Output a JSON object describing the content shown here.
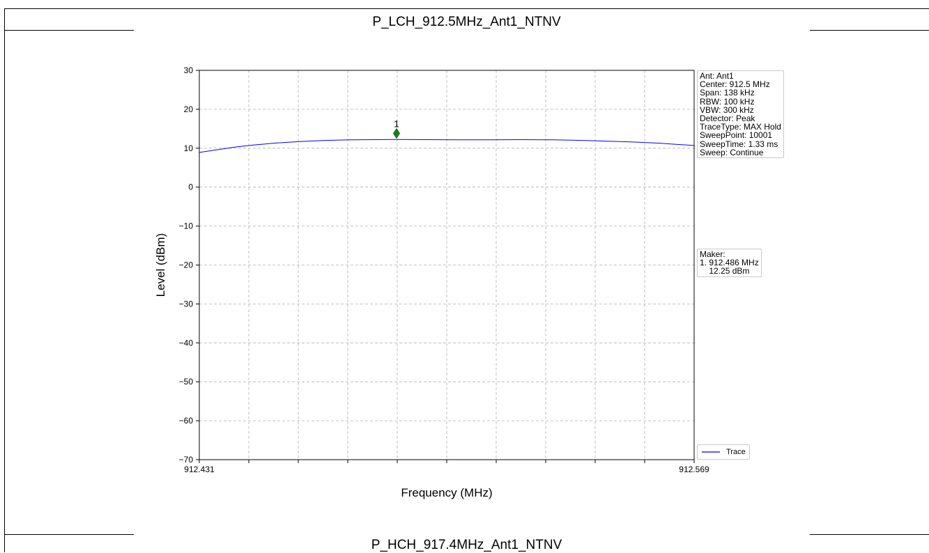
{
  "sections": [
    {
      "title": "P_LCH_912.5MHz_Ant1_NTNV"
    },
    {
      "title": "P_HCH_917.4MHz_Ant1_NTNV"
    }
  ],
  "info_box": {
    "lines": [
      "Ant: Ant1",
      "Center: 912.5 MHz",
      "Span: 138 kHz",
      "RBW: 100 kHz",
      "VBW: 300 kHz",
      "Detector: Peak",
      "TraceType: MAX Hold",
      "SweepPoint: 10001",
      "SweepTime: 1.33 ms",
      "Sweep: Continue"
    ]
  },
  "marker_box": {
    "lines": [
      "Maker:",
      "1. 912.486 MHz",
      "    12.25 dBm"
    ]
  },
  "legend": {
    "label": "Trace"
  },
  "colors": {
    "trace": "#0000ff",
    "marker": "#1a7f1a",
    "grid": "#b0b0b0"
  },
  "chart_data": {
    "type": "line",
    "xlabel": "Frequency (MHz)",
    "ylabel": "Level (dBm)",
    "xlim": [
      912.431,
      912.569
    ],
    "ylim": [
      -70,
      30
    ],
    "x_tick_labels": [
      "912.431",
      "912.569"
    ],
    "x_minor_ticks": 10,
    "y_ticks": [
      30,
      20,
      10,
      0,
      -10,
      -20,
      -30,
      -40,
      -50,
      -60,
      -70
    ],
    "grid": true,
    "legend_position": "lower-right",
    "series": [
      {
        "name": "Trace",
        "x": [
          912.431,
          912.436,
          912.441,
          912.446,
          912.452,
          912.459,
          912.466,
          912.473,
          912.48,
          912.486,
          912.494,
          912.503,
          912.512,
          912.521,
          912.53,
          912.538,
          912.545,
          912.552,
          912.559,
          912.564,
          912.569
        ],
        "y": [
          8.9,
          9.6,
          10.3,
          10.8,
          11.3,
          11.7,
          12.0,
          12.15,
          12.2,
          12.25,
          12.2,
          12.15,
          12.15,
          12.2,
          12.15,
          12.0,
          11.8,
          11.6,
          11.3,
          11.0,
          10.7
        ]
      }
    ],
    "markers": [
      {
        "label": "1",
        "x": 912.486,
        "y": 13.8
      }
    ]
  }
}
